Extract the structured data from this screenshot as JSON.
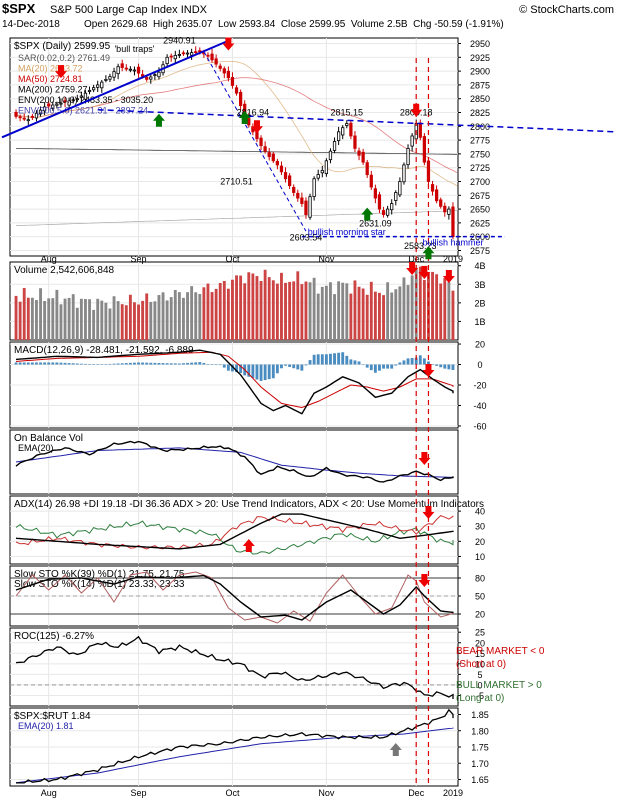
{
  "header": {
    "symbol": "$SPX",
    "name": "S&P 500 Large Cap Index",
    "exchange": "INDX",
    "watermark": "© StockCharts.com",
    "date": "14-Dec-2018",
    "quote": "Open 2629.68  High 2635.07  Low 2593.84  Close 2599.95  Volume 2.5B  Chg -50.59 (-1.91%)"
  },
  "colors": {
    "up_candle": "#000000",
    "down_candle": "#cc0000",
    "sma20": "#d4a060",
    "sma50": "#cc0000",
    "sma200": "#444444",
    "env": "#4444aa",
    "trend": "#0000cc",
    "volume_up": "#888888",
    "volume_down": "#cc4444",
    "arrow_red": "#ee0000",
    "arrow_green": "#007700",
    "arrow_grey": "#777777"
  },
  "x_axis": {
    "months": [
      {
        "label": "Aug",
        "idx": 8
      },
      {
        "label": "Sep",
        "idx": 30
      },
      {
        "label": "Oct",
        "idx": 53
      },
      {
        "label": "Nov",
        "idx": 76
      },
      {
        "label": "Dec",
        "idx": 98
      },
      {
        "label": "2019",
        "idx": 114
      }
    ]
  },
  "panels": [
    {
      "id": "price",
      "top": 38,
      "bottom": 256,
      "ymin": 2565,
      "ymax": 2960,
      "title": "$SPX (Daily) 2599.95",
      "ticks": [
        2575,
        2600,
        2625,
        2650,
        2675,
        2700,
        2725,
        2750,
        2775,
        2800,
        2825,
        2850,
        2875,
        2900,
        2925,
        2950
      ],
      "legend": [
        {
          "text": "SAR(0.02,0.2) 2761.49",
          "color": "#555555"
        },
        {
          "text": "MA(20) 2683.72",
          "color": "#d4a060"
        },
        {
          "text": "MA(50) 2724.81",
          "color": "#cc0000"
        },
        {
          "text": "MA(200) 2759.27",
          "color": "#000000"
        },
        {
          "text": "ENV(200,10.0) 2483.35 - 3035.20",
          "color": "#000000"
        },
        {
          "text": "ENV(200,5.0) 2621.31 - 2897.24",
          "color": "#4444aa"
        }
      ]
    },
    {
      "id": "volume",
      "top": 262,
      "bottom": 340,
      "ymin": 0,
      "ymax": 4.2,
      "title": "Volume 2,542,606,848",
      "ticks": [
        1,
        2,
        3,
        4
      ],
      "ticklabels": [
        "1B",
        "2B",
        "3B",
        "4B"
      ]
    },
    {
      "id": "macd",
      "top": 342,
      "bottom": 428,
      "ymin": -62,
      "ymax": 22,
      "title": "MACD(12,26,9) -28.481, -21.592, -6.889",
      "ticks": [
        -60,
        -40,
        -20,
        0,
        20
      ]
    },
    {
      "id": "obv",
      "top": 430,
      "bottom": 494,
      "ymin": 0,
      "ymax": 1,
      "title": "On Balance Vol",
      "legend": "EMA(20)",
      "ticks": []
    },
    {
      "id": "adx",
      "top": 496,
      "bottom": 564,
      "ymin": 5,
      "ymax": 50,
      "title": "ADX(14) 26.98 +DI 19.18 -DI 36.36 ADX > 20: Use Trend Indicators, ADX < 20: Use Momentum Indicators",
      "ticks": [
        10,
        20,
        30,
        40
      ]
    },
    {
      "id": "sto",
      "top": 566,
      "bottom": 626,
      "ymin": 0,
      "ymax": 100,
      "title": "Slow STO %K(39) %D(1) 21.75, 21.75",
      "title2": "Slow STO %K(14) %D(1) 23.33, 23.33",
      "ticks": [
        20,
        50,
        80
      ]
    },
    {
      "id": "roc",
      "top": 628,
      "bottom": 706,
      "ymin": -10,
      "ymax": 27,
      "title": "ROC(125) -6.27%",
      "ticks": [
        -5,
        0,
        5,
        10,
        15,
        20,
        25
      ]
    },
    {
      "id": "ratio",
      "top": 708,
      "bottom": 786,
      "ymin": 1.63,
      "ymax": 1.87,
      "title": "$SPX:$RUT 1.84",
      "legend": "EMA(20) 1.81",
      "ticks": [
        1.65,
        1.7,
        1.75,
        1.8,
        1.85
      ],
      "ticklabels": [
        "1.65",
        "1.70",
        "1.75",
        "1.80",
        "1.85"
      ]
    }
  ],
  "annotations": {
    "price_labels": [
      {
        "text": "'bull traps'",
        "idx": 29,
        "v": 2935
      },
      {
        "text": "2940.91",
        "idx": 40,
        "v": 2950
      },
      {
        "text": "2816.94",
        "idx": 58,
        "v": 2820
      },
      {
        "text": "2815.15",
        "idx": 81,
        "v": 2820
      },
      {
        "text": "2800.18",
        "idx": 98,
        "v": 2820
      },
      {
        "text": "2710.51",
        "idx": 54,
        "v": 2695
      },
      {
        "text": "2631.09",
        "idx": 88,
        "v": 2618
      },
      {
        "text": "2603.54",
        "idx": 71,
        "v": 2593
      },
      {
        "text": "bullish morning star",
        "idx": 81,
        "v": 2603
      },
      {
        "text": "2583.23",
        "idx": 99,
        "v": 2578
      },
      {
        "text": "bullish hammer",
        "idx": 108,
        "v": 2584
      }
    ],
    "bear_text": "BEAR MARKET < 0",
    "bear_sub": "(Short at 0)",
    "bull_text": "BULL MARKET > 0",
    "bull_sub": "(Long at 0)"
  },
  "chart_data": {
    "type": "line",
    "n": 108,
    "price": {
      "anchors": [
        [
          0,
          2820
        ],
        [
          4,
          2812
        ],
        [
          8,
          2835
        ],
        [
          12,
          2842
        ],
        [
          16,
          2850
        ],
        [
          20,
          2870
        ],
        [
          24,
          2890
        ],
        [
          26,
          2908
        ],
        [
          30,
          2902
        ],
        [
          33,
          2885
        ],
        [
          36,
          2898
        ],
        [
          38,
          2925
        ],
        [
          42,
          2932
        ],
        [
          46,
          2935
        ],
        [
          48,
          2928
        ],
        [
          51,
          2905
        ],
        [
          53,
          2888
        ],
        [
          55,
          2860
        ],
        [
          57,
          2815
        ],
        [
          59,
          2790
        ],
        [
          61,
          2765
        ],
        [
          63,
          2745
        ],
        [
          65,
          2730
        ],
        [
          67,
          2705
        ],
        [
          69,
          2680
        ],
        [
          71,
          2660
        ],
        [
          72,
          2640
        ],
        [
          74,
          2705
        ],
        [
          76,
          2720
        ],
        [
          78,
          2755
        ],
        [
          80,
          2790
        ],
        [
          82,
          2805
        ],
        [
          84,
          2760
        ],
        [
          86,
          2735
        ],
        [
          88,
          2690
        ],
        [
          90,
          2650
        ],
        [
          91,
          2640
        ],
        [
          93,
          2660
        ],
        [
          95,
          2700
        ],
        [
          97,
          2760
        ],
        [
          99,
          2805
        ],
        [
          100,
          2780
        ],
        [
          101,
          2735
        ],
        [
          102,
          2700
        ],
        [
          104,
          2665
        ],
        [
          106,
          2645
        ],
        [
          107,
          2650
        ],
        [
          108,
          2600
        ]
      ]
    },
    "volume": {
      "anchors": [
        [
          0,
          2.4
        ],
        [
          10,
          2.3
        ],
        [
          20,
          2.0
        ],
        [
          30,
          2.1
        ],
        [
          40,
          2.5
        ],
        [
          50,
          2.9
        ],
        [
          55,
          3.4
        ],
        [
          60,
          3.5
        ],
        [
          65,
          3.2
        ],
        [
          70,
          3.3
        ],
        [
          75,
          2.8
        ],
        [
          80,
          3.0
        ],
        [
          85,
          2.8
        ],
        [
          90,
          2.6
        ],
        [
          95,
          3.0
        ],
        [
          98,
          3.8
        ],
        [
          100,
          3.6
        ],
        [
          104,
          3.4
        ],
        [
          108,
          2.5
        ]
      ]
    },
    "macd": {
      "anchors": [
        [
          0,
          5
        ],
        [
          10,
          8
        ],
        [
          20,
          7
        ],
        [
          30,
          10
        ],
        [
          40,
          12
        ],
        [
          45,
          14
        ],
        [
          50,
          10
        ],
        [
          55,
          -10
        ],
        [
          60,
          -38
        ],
        [
          63,
          -45
        ],
        [
          66,
          -40
        ],
        [
          70,
          -48
        ],
        [
          73,
          -28
        ],
        [
          76,
          -22
        ],
        [
          80,
          -12
        ],
        [
          84,
          -18
        ],
        [
          88,
          -32
        ],
        [
          92,
          -28
        ],
        [
          96,
          -12
        ],
        [
          99,
          -5
        ],
        [
          102,
          -14
        ],
        [
          105,
          -22
        ],
        [
          108,
          -28
        ]
      ]
    },
    "macd_signal": {
      "anchors": [
        [
          0,
          3
        ],
        [
          10,
          6
        ],
        [
          20,
          7
        ],
        [
          30,
          8
        ],
        [
          40,
          11
        ],
        [
          48,
          12
        ],
        [
          52,
          8
        ],
        [
          56,
          -5
        ],
        [
          60,
          -22
        ],
        [
          65,
          -38
        ],
        [
          70,
          -42
        ],
        [
          74,
          -36
        ],
        [
          78,
          -28
        ],
        [
          82,
          -20
        ],
        [
          86,
          -22
        ],
        [
          90,
          -26
        ],
        [
          94,
          -22
        ],
        [
          98,
          -14
        ],
        [
          102,
          -14
        ],
        [
          105,
          -18
        ],
        [
          108,
          -22
        ]
      ]
    },
    "obv": {
      "anchors": [
        [
          0,
          0.45
        ],
        [
          6,
          0.62
        ],
        [
          12,
          0.72
        ],
        [
          18,
          0.62
        ],
        [
          24,
          0.78
        ],
        [
          30,
          0.82
        ],
        [
          36,
          0.68
        ],
        [
          42,
          0.7
        ],
        [
          48,
          0.74
        ],
        [
          52,
          0.72
        ],
        [
          56,
          0.58
        ],
        [
          60,
          0.3
        ],
        [
          64,
          0.42
        ],
        [
          68,
          0.36
        ],
        [
          72,
          0.26
        ],
        [
          76,
          0.4
        ],
        [
          80,
          0.3
        ],
        [
          86,
          0.26
        ],
        [
          90,
          0.18
        ],
        [
          94,
          0.28
        ],
        [
          98,
          0.35
        ],
        [
          101,
          0.3
        ],
        [
          104,
          0.22
        ],
        [
          108,
          0.28
        ]
      ]
    },
    "obv_ema": {
      "anchors": [
        [
          0,
          0.5
        ],
        [
          20,
          0.68
        ],
        [
          40,
          0.72
        ],
        [
          55,
          0.65
        ],
        [
          65,
          0.45
        ],
        [
          75,
          0.38
        ],
        [
          85,
          0.32
        ],
        [
          95,
          0.28
        ],
        [
          108,
          0.26
        ]
      ]
    },
    "adx": {
      "anchors": [
        [
          0,
          22
        ],
        [
          20,
          18
        ],
        [
          40,
          15
        ],
        [
          50,
          18
        ],
        [
          55,
          25
        ],
        [
          60,
          32
        ],
        [
          65,
          38
        ],
        [
          70,
          38
        ],
        [
          78,
          33
        ],
        [
          86,
          28
        ],
        [
          94,
          22
        ],
        [
          100,
          24
        ],
        [
          108,
          27
        ]
      ]
    },
    "pdi": {
      "anchors": [
        [
          0,
          30
        ],
        [
          10,
          24
        ],
        [
          20,
          28
        ],
        [
          30,
          32
        ],
        [
          40,
          28
        ],
        [
          48,
          25
        ],
        [
          54,
          14
        ],
        [
          60,
          12
        ],
        [
          70,
          18
        ],
        [
          80,
          25
        ],
        [
          88,
          20
        ],
        [
          94,
          26
        ],
        [
          98,
          28
        ],
        [
          104,
          20
        ],
        [
          108,
          19
        ]
      ]
    },
    "mdi": {
      "anchors": [
        [
          0,
          18
        ],
        [
          10,
          22
        ],
        [
          20,
          18
        ],
        [
          30,
          16
        ],
        [
          40,
          16
        ],
        [
          48,
          18
        ],
        [
          54,
          30
        ],
        [
          60,
          36
        ],
        [
          70,
          32
        ],
        [
          80,
          28
        ],
        [
          88,
          32
        ],
        [
          94,
          28
        ],
        [
          98,
          26
        ],
        [
          104,
          36
        ],
        [
          108,
          36
        ]
      ]
    },
    "sto39": {
      "anchors": [
        [
          0,
          60
        ],
        [
          8,
          78
        ],
        [
          16,
          80
        ],
        [
          24,
          70
        ],
        [
          30,
          82
        ],
        [
          38,
          80
        ],
        [
          46,
          84
        ],
        [
          50,
          70
        ],
        [
          55,
          40
        ],
        [
          60,
          15
        ],
        [
          66,
          18
        ],
        [
          70,
          10
        ],
        [
          76,
          40
        ],
        [
          82,
          60
        ],
        [
          86,
          40
        ],
        [
          90,
          20
        ],
        [
          94,
          35
        ],
        [
          98,
          65
        ],
        [
          100,
          50
        ],
        [
          104,
          25
        ],
        [
          108,
          22
        ]
      ]
    },
    "sto14": {
      "anchors": [
        [
          0,
          50
        ],
        [
          4,
          85
        ],
        [
          8,
          60
        ],
        [
          12,
          85
        ],
        [
          16,
          55
        ],
        [
          20,
          80
        ],
        [
          24,
          40
        ],
        [
          28,
          85
        ],
        [
          32,
          90
        ],
        [
          36,
          60
        ],
        [
          40,
          85
        ],
        [
          44,
          90
        ],
        [
          48,
          80
        ],
        [
          52,
          30
        ],
        [
          56,
          10
        ],
        [
          60,
          15
        ],
        [
          64,
          5
        ],
        [
          68,
          25
        ],
        [
          72,
          8
        ],
        [
          76,
          55
        ],
        [
          80,
          85
        ],
        [
          84,
          50
        ],
        [
          88,
          20
        ],
        [
          92,
          30
        ],
        [
          96,
          85
        ],
        [
          98,
          75
        ],
        [
          100,
          40
        ],
        [
          104,
          15
        ],
        [
          108,
          23
        ]
      ]
    },
    "roc": {
      "anchors": [
        [
          0,
          10
        ],
        [
          5,
          14
        ],
        [
          10,
          18
        ],
        [
          15,
          14
        ],
        [
          20,
          20
        ],
        [
          25,
          18
        ],
        [
          30,
          22
        ],
        [
          35,
          16
        ],
        [
          40,
          18
        ],
        [
          45,
          15
        ],
        [
          50,
          12
        ],
        [
          55,
          10
        ],
        [
          60,
          4
        ],
        [
          65,
          6
        ],
        [
          70,
          2
        ],
        [
          75,
          4
        ],
        [
          80,
          6
        ],
        [
          85,
          3
        ],
        [
          90,
          -1
        ],
        [
          95,
          1
        ],
        [
          98,
          -2
        ],
        [
          100,
          -5
        ],
        [
          104,
          -4
        ],
        [
          108,
          -6.27
        ]
      ]
    },
    "ratio": {
      "anchors": [
        [
          0,
          1.64
        ],
        [
          10,
          1.65
        ],
        [
          20,
          1.68
        ],
        [
          30,
          1.72
        ],
        [
          40,
          1.75
        ],
        [
          50,
          1.76
        ],
        [
          60,
          1.78
        ],
        [
          70,
          1.79
        ],
        [
          80,
          1.78
        ],
        [
          90,
          1.78
        ],
        [
          95,
          1.8
        ],
        [
          100,
          1.82
        ],
        [
          104,
          1.84
        ],
        [
          106,
          1.86
        ],
        [
          108,
          1.84
        ]
      ]
    },
    "ratio_ema": {
      "anchors": [
        [
          0,
          1.64
        ],
        [
          20,
          1.67
        ],
        [
          40,
          1.72
        ],
        [
          60,
          1.76
        ],
        [
          80,
          1.78
        ],
        [
          95,
          1.79
        ],
        [
          108,
          1.81
        ]
      ]
    }
  }
}
